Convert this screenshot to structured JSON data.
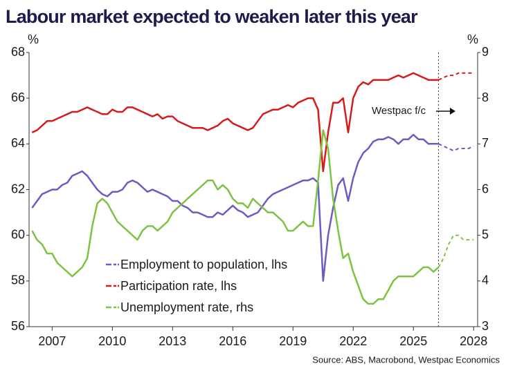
{
  "chart_data": {
    "type": "line",
    "title": "Labour market expected to weaken later this year",
    "y_label": "%",
    "y2_label": "%",
    "source": "Source: ABS, Macrobond, Westpac Economics",
    "annotation": {
      "text": "Westpac f/c"
    },
    "xlim": [
      2005.85,
      2028.2
    ],
    "xticks": [
      2007,
      2010,
      2013,
      2016,
      2019,
      2022,
      2025,
      2028
    ],
    "ylim": [
      56,
      68
    ],
    "yticks": [
      56,
      58,
      60,
      62,
      64,
      66,
      68
    ],
    "y2lim": [
      3,
      9
    ],
    "y2ticks": [
      3,
      4,
      5,
      6,
      7,
      8,
      9
    ],
    "legend": "lower-left",
    "grid": false,
    "x": [
      2006,
      2006.25,
      2006.5,
      2006.75,
      2007,
      2007.25,
      2007.5,
      2007.75,
      2008,
      2008.25,
      2008.5,
      2008.75,
      2009,
      2009.25,
      2009.5,
      2009.75,
      2010,
      2010.25,
      2010.5,
      2010.75,
      2011,
      2011.25,
      2011.5,
      2011.75,
      2012,
      2012.25,
      2012.5,
      2012.75,
      2013,
      2013.25,
      2013.5,
      2013.75,
      2014,
      2014.25,
      2014.5,
      2014.75,
      2015,
      2015.25,
      2015.5,
      2015.75,
      2016,
      2016.25,
      2016.5,
      2016.75,
      2017,
      2017.25,
      2017.5,
      2017.75,
      2018,
      2018.25,
      2018.5,
      2018.75,
      2019,
      2019.25,
      2019.5,
      2019.75,
      2020,
      2020.25,
      2020.5,
      2020.75,
      2021,
      2021.25,
      2021.5,
      2021.75,
      2022,
      2022.25,
      2022.5,
      2022.75,
      2023,
      2023.25,
      2023.5,
      2023.75,
      2024,
      2024.25,
      2024.5,
      2024.75,
      2025,
      2025.25,
      2025.5,
      2025.75,
      2026,
      2026.25
    ],
    "forecast_x": [
      2026.25,
      2026.5,
      2026.75,
      2027,
      2027.25,
      2027.5,
      2027.75,
      2028
    ],
    "series": [
      {
        "name": "Employment to population, lhs",
        "color": "#6b5bc4",
        "values": [
          61.2,
          61.5,
          61.8,
          61.9,
          62.0,
          62.0,
          62.2,
          62.3,
          62.6,
          62.7,
          62.8,
          62.6,
          62.3,
          62.0,
          61.8,
          61.7,
          61.9,
          61.9,
          62.0,
          62.3,
          62.4,
          62.3,
          62.1,
          61.9,
          62.0,
          61.9,
          61.8,
          61.7,
          61.5,
          61.5,
          61.3,
          61.2,
          61.0,
          61.0,
          60.9,
          60.8,
          60.8,
          61.0,
          60.9,
          61.1,
          61.3,
          61.1,
          61.0,
          60.8,
          60.9,
          61.0,
          61.3,
          61.6,
          61.8,
          61.9,
          62.0,
          62.1,
          62.2,
          62.3,
          62.4,
          62.4,
          62.5,
          62.3,
          58.0,
          60.0,
          61.2,
          62.2,
          62.5,
          61.5,
          62.5,
          63.2,
          63.6,
          63.8,
          64.1,
          64.2,
          64.2,
          64.3,
          64.2,
          64.0,
          64.2,
          64.2,
          64.4,
          64.2,
          64.2,
          64.0,
          64.0,
          64.0
        ],
        "forecast": [
          64.0,
          63.9,
          63.8,
          63.7,
          63.8,
          63.8,
          63.8,
          63.9
        ]
      },
      {
        "name": "Participation rate, lhs",
        "color": "#d7191c",
        "values": [
          64.5,
          64.6,
          64.8,
          65.0,
          65.0,
          65.1,
          65.2,
          65.3,
          65.4,
          65.4,
          65.5,
          65.6,
          65.5,
          65.4,
          65.3,
          65.3,
          65.5,
          65.4,
          65.4,
          65.6,
          65.6,
          65.5,
          65.4,
          65.3,
          65.2,
          65.3,
          65.1,
          65.2,
          65.2,
          65.0,
          64.9,
          64.8,
          64.7,
          64.7,
          64.7,
          64.6,
          64.7,
          64.8,
          65.0,
          65.1,
          64.9,
          64.8,
          64.7,
          64.6,
          64.7,
          65.0,
          65.3,
          65.4,
          65.5,
          65.5,
          65.6,
          65.7,
          65.6,
          65.8,
          65.9,
          66.0,
          66.0,
          65.5,
          62.8,
          64.5,
          65.8,
          65.8,
          66.0,
          64.5,
          66.0,
          66.5,
          66.7,
          66.6,
          66.8,
          66.8,
          66.8,
          66.8,
          66.9,
          67.0,
          66.9,
          67.0,
          67.1,
          67.0,
          66.9,
          66.8,
          66.8,
          66.8
        ],
        "forecast": [
          66.8,
          66.9,
          67.0,
          67.0,
          67.1,
          67.1,
          67.1,
          67.1
        ]
      },
      {
        "name": "Unemployment rate, rhs",
        "color": "#7dc242",
        "axis": "y2",
        "values": [
          5.1,
          4.9,
          4.8,
          4.6,
          4.6,
          4.4,
          4.3,
          4.2,
          4.1,
          4.2,
          4.3,
          4.5,
          5.2,
          5.7,
          5.8,
          5.7,
          5.5,
          5.3,
          5.2,
          5.1,
          5.0,
          4.9,
          5.1,
          5.2,
          5.2,
          5.1,
          5.2,
          5.3,
          5.5,
          5.6,
          5.7,
          5.8,
          5.9,
          6.0,
          6.1,
          6.2,
          6.2,
          6.0,
          6.1,
          6.0,
          5.8,
          5.7,
          5.7,
          5.6,
          5.8,
          5.7,
          5.6,
          5.5,
          5.5,
          5.4,
          5.3,
          5.1,
          5.1,
          5.2,
          5.3,
          5.2,
          5.2,
          6.2,
          7.3,
          6.9,
          5.8,
          5.1,
          4.5,
          4.6,
          4.2,
          3.9,
          3.6,
          3.5,
          3.5,
          3.6,
          3.6,
          3.8,
          4.0,
          4.1,
          4.1,
          4.1,
          4.1,
          4.2,
          4.3,
          4.3,
          4.2,
          4.3
        ],
        "forecast": [
          4.3,
          4.5,
          4.8,
          5.0,
          5.0,
          4.9,
          4.9,
          4.9
        ]
      }
    ]
  }
}
